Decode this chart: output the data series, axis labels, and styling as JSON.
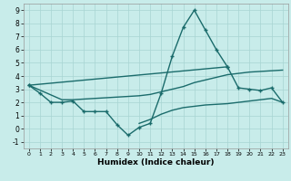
{
  "bg_color": "#c8ecea",
  "grid_color": "#a8d4d2",
  "line_color": "#1a6b6b",
  "xlabel": "Humidex (Indice chaleur)",
  "xlim": [
    -0.5,
    23.5
  ],
  "ylim": [
    -1.5,
    9.5
  ],
  "curve1_x": [
    0,
    1,
    2,
    3,
    4,
    5,
    6,
    7,
    8,
    9,
    10,
    11,
    12,
    13,
    14,
    15,
    16,
    17,
    18
  ],
  "curve1_y": [
    3.3,
    2.7,
    2.0,
    2.0,
    2.1,
    1.3,
    1.3,
    1.3,
    0.3,
    -0.5,
    0.1,
    0.4,
    2.7,
    5.5,
    7.7,
    9.0,
    7.5,
    6.0,
    4.7
  ],
  "curve2_x": [
    0,
    18,
    19,
    20,
    21,
    22,
    23
  ],
  "curve2_y": [
    3.3,
    4.7,
    3.1,
    3.0,
    2.9,
    3.1,
    2.0
  ],
  "curve3_x": [
    0,
    3,
    4,
    10,
    11,
    12,
    13,
    14,
    15,
    16,
    17,
    18,
    19,
    20,
    21,
    22,
    23
  ],
  "curve3_y": [
    3.3,
    2.2,
    2.2,
    2.5,
    2.6,
    2.8,
    3.0,
    3.2,
    3.5,
    3.7,
    3.9,
    4.1,
    4.2,
    4.3,
    4.35,
    4.4,
    4.45
  ],
  "curve4_x": [
    10,
    11,
    12,
    13,
    14,
    15,
    16,
    17,
    18,
    19,
    20,
    21,
    22,
    23
  ],
  "curve4_y": [
    0.4,
    0.7,
    1.1,
    1.4,
    1.6,
    1.7,
    1.8,
    1.85,
    1.9,
    2.0,
    2.1,
    2.2,
    2.3,
    2.0
  ]
}
